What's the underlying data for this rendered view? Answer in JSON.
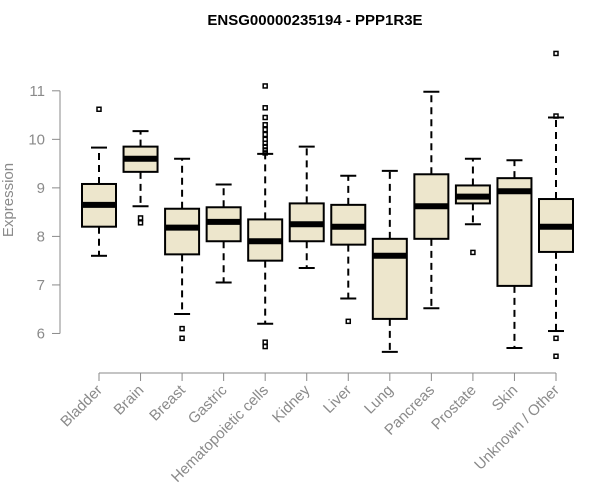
{
  "chart_data": {
    "type": "boxplot",
    "title": "ENSG00000235194 - PPP1R3E",
    "xlabel": "",
    "ylabel": "Expression",
    "ylim": [
      5.35,
      12.15
    ],
    "yticks": [
      6,
      7,
      8,
      9,
      10,
      11
    ],
    "categories": [
      "Bladder",
      "Brain",
      "Breast",
      "Gastric",
      "Hematopoietic cells",
      "Kidney",
      "Liver",
      "Lung",
      "Pancreas",
      "Prostate",
      "Skin",
      "Unknown / Other"
    ],
    "boxes": [
      {
        "category": "Bladder",
        "min": 7.6,
        "q1": 8.2,
        "median": 8.65,
        "q3": 9.08,
        "max": 9.83,
        "outliers": [
          10.62
        ]
      },
      {
        "category": "Brain",
        "min": 8.62,
        "q1": 9.33,
        "median": 9.6,
        "q3": 9.85,
        "max": 10.17,
        "outliers": [
          8.28,
          8.38
        ]
      },
      {
        "category": "Breast",
        "min": 6.4,
        "q1": 7.63,
        "median": 8.18,
        "q3": 8.57,
        "max": 9.6,
        "outliers": [
          6.1,
          5.9
        ]
      },
      {
        "category": "Gastric",
        "min": 7.05,
        "q1": 7.9,
        "median": 8.3,
        "q3": 8.6,
        "max": 9.07,
        "outliers": []
      },
      {
        "category": "Hematopoietic cells",
        "min": 6.2,
        "q1": 7.5,
        "median": 7.9,
        "q3": 8.35,
        "max": 9.7,
        "outliers": [
          5.73,
          5.82,
          9.72,
          9.78,
          9.85,
          9.92,
          10.0,
          10.1,
          10.2,
          10.3,
          10.45,
          10.65,
          11.1
        ]
      },
      {
        "category": "Kidney",
        "min": 7.35,
        "q1": 7.9,
        "median": 8.25,
        "q3": 8.68,
        "max": 9.85,
        "outliers": []
      },
      {
        "category": "Liver",
        "min": 6.72,
        "q1": 7.83,
        "median": 8.2,
        "q3": 8.65,
        "max": 9.25,
        "outliers": [
          6.25
        ]
      },
      {
        "category": "Lung",
        "min": 5.62,
        "q1": 6.3,
        "median": 7.6,
        "q3": 7.95,
        "max": 9.35,
        "outliers": []
      },
      {
        "category": "Pancreas",
        "min": 6.52,
        "q1": 7.95,
        "median": 8.62,
        "q3": 9.28,
        "max": 10.98,
        "outliers": []
      },
      {
        "category": "Prostate",
        "min": 8.25,
        "q1": 8.68,
        "median": 8.82,
        "q3": 9.05,
        "max": 9.6,
        "outliers": [
          7.67
        ]
      },
      {
        "category": "Skin",
        "min": 5.7,
        "q1": 6.98,
        "median": 8.93,
        "q3": 9.2,
        "max": 9.57,
        "outliers": []
      },
      {
        "category": "Unknown / Other",
        "min": 6.05,
        "q1": 7.68,
        "median": 8.2,
        "q3": 8.77,
        "max": 10.45,
        "outliers": [
          5.53,
          5.9,
          10.48,
          11.77
        ]
      }
    ],
    "grid": false,
    "colors": {
      "box_fill": "#ede6cc",
      "box_stroke": "#000000",
      "axis": "#8a8a8a",
      "title": "#000000"
    }
  }
}
